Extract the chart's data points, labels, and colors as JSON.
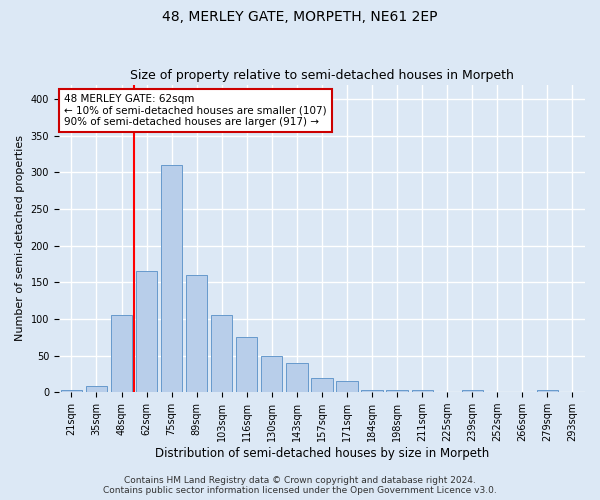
{
  "title": "48, MERLEY GATE, MORPETH, NE61 2EP",
  "subtitle": "Size of property relative to semi-detached houses in Morpeth",
  "xlabel": "Distribution of semi-detached houses by size in Morpeth",
  "ylabel": "Number of semi-detached properties",
  "categories": [
    "21sqm",
    "35sqm",
    "48sqm",
    "62sqm",
    "75sqm",
    "89sqm",
    "103sqm",
    "116sqm",
    "130sqm",
    "143sqm",
    "157sqm",
    "171sqm",
    "184sqm",
    "198sqm",
    "211sqm",
    "225sqm",
    "239sqm",
    "252sqm",
    "266sqm",
    "279sqm",
    "293sqm"
  ],
  "values": [
    3,
    8,
    105,
    165,
    310,
    160,
    105,
    75,
    50,
    40,
    20,
    15,
    3,
    3,
    3,
    0,
    3,
    0,
    0,
    3,
    0
  ],
  "bar_color": "#b8ceea",
  "bar_edge_color": "#6699cc",
  "red_line_x": 3.5,
  "annotation_line1": "48 MERLEY GATE: 62sqm",
  "annotation_line2": "← 10% of semi-detached houses are smaller (107)",
  "annotation_line3": "90% of semi-detached houses are larger (917) →",
  "annotation_box_facecolor": "#ffffff",
  "annotation_box_edgecolor": "#cc0000",
  "ylim": [
    0,
    420
  ],
  "yticks": [
    0,
    50,
    100,
    150,
    200,
    250,
    300,
    350,
    400
  ],
  "footer1": "Contains HM Land Registry data © Crown copyright and database right 2024.",
  "footer2": "Contains public sector information licensed under the Open Government Licence v3.0.",
  "fig_facecolor": "#dce8f5",
  "ax_facecolor": "#dce8f5",
  "grid_color": "#ffffff",
  "title_fontsize": 10,
  "subtitle_fontsize": 9,
  "xlabel_fontsize": 8.5,
  "ylabel_fontsize": 8,
  "tick_fontsize": 7,
  "annot_fontsize": 7.5,
  "footer_fontsize": 6.5
}
